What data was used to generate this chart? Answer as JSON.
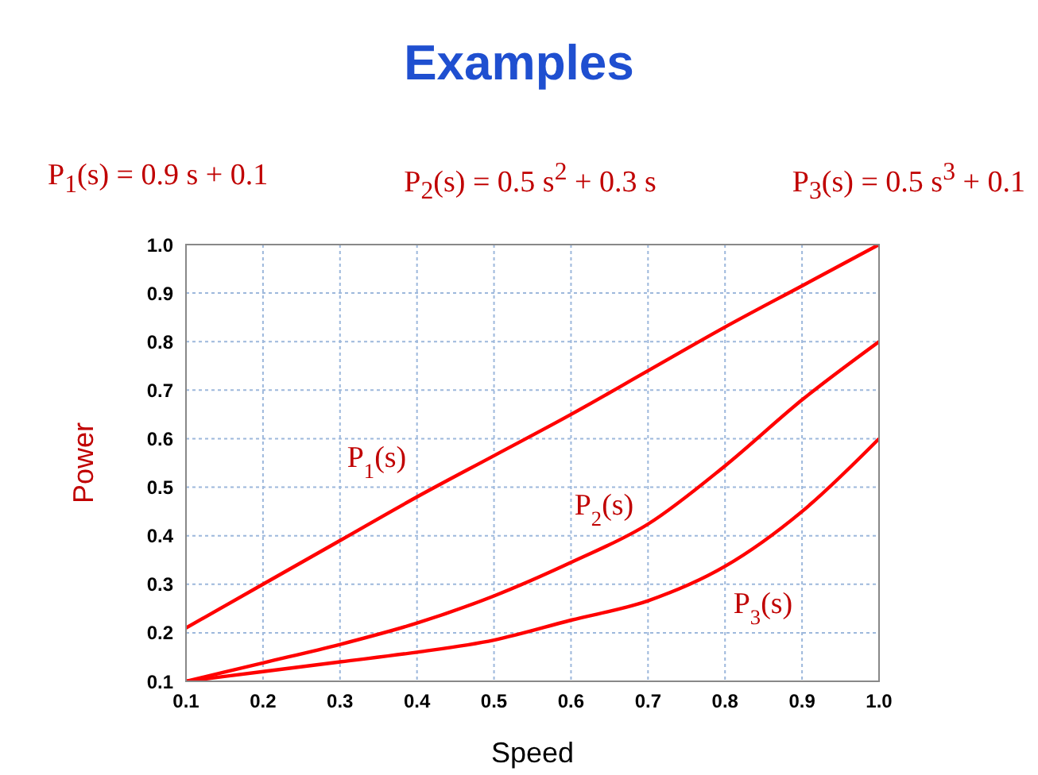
{
  "chart_data": {
    "type": "line",
    "title": "Examples",
    "xlabel": "Speed",
    "ylabel": "Power",
    "x": [
      0.1,
      0.2,
      0.3,
      0.4,
      0.5,
      0.6,
      0.7,
      0.8,
      0.9,
      1.0
    ],
    "series": [
      {
        "name": "P$_{1}$(s)",
        "color": "#ff0000",
        "values": [
          0.21,
          0.3,
          0.39,
          0.48,
          0.565,
          0.65,
          0.74,
          0.83,
          0.915,
          1.0
        ]
      },
      {
        "name": "P$_{2}$(s)",
        "color": "#ff0000",
        "values": [
          0.1,
          0.138,
          0.176,
          0.22,
          0.276,
          0.345,
          0.424,
          0.544,
          0.68,
          0.8
        ]
      },
      {
        "name": "P$_{3}$(s)",
        "color": "#ff0000",
        "values": [
          0.1,
          0.12,
          0.14,
          0.16,
          0.185,
          0.226,
          0.266,
          0.337,
          0.45,
          0.6
        ]
      }
    ],
    "xlim": [
      0.1,
      1.0
    ],
    "ylim": [
      0.1,
      1.0
    ],
    "xticks": [
      0.1,
      0.2,
      0.3,
      0.4,
      0.5,
      0.6,
      0.7,
      0.8,
      0.9,
      {
        "value": 1,
        "label": "1.0"
      }
    ],
    "yticks": [
      0.1,
      0.2,
      0.3,
      0.4,
      0.5,
      0.6,
      0.7,
      0.8,
      0.9,
      {
        "value": 1,
        "label": "1.0"
      }
    ],
    "grid": true,
    "legend": false,
    "marker": "none",
    "line_style": "solid",
    "annotations": [
      "P$_{1}$(s) = 0.9 s + 0.1",
      "P$_{2}$(s) = 0.5 s$^{2}$ + 0.3 s",
      "P$_{3}$(s) = 0.5 s$^{3}$ + 0.1"
    ]
  }
}
